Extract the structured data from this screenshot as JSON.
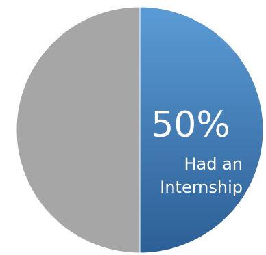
{
  "chart_data": {
    "type": "pie",
    "slices": [
      {
        "value": 50,
        "label": "Had an Internship",
        "label_lines": [
          "Had an",
          "Internship"
        ],
        "display_value": "50%",
        "color_top": "#5b9bd5",
        "color_bottom": "#2c5f95",
        "show_label": true
      },
      {
        "value": 50,
        "label": "",
        "label_lines": [],
        "display_value": "",
        "color_top": "#a6a6a6",
        "color_bottom": "#a6a6a6",
        "show_label": false
      }
    ],
    "start_angle_deg": 0,
    "direction": "clockwise",
    "legend": "none"
  }
}
